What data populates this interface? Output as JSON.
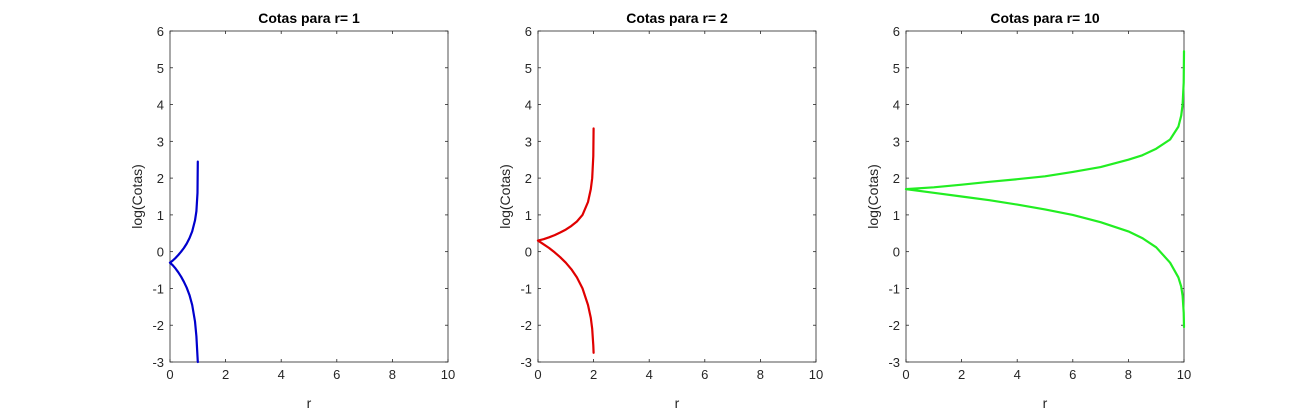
{
  "chart_data": [
    {
      "type": "line",
      "title": "Cotas para r= 1",
      "xlabel": "r",
      "ylabel": "log(Cotas)",
      "xlim": [
        0,
        10
      ],
      "ylim": [
        -3,
        6
      ],
      "xticks": [
        "0",
        "2",
        "4",
        "6",
        "8",
        "10"
      ],
      "yticks": [
        "-3",
        "-2",
        "-1",
        "0",
        "1",
        "2",
        "3",
        "4",
        "5",
        "6"
      ],
      "grid": false,
      "color": "#0000cd",
      "series": [
        {
          "x": [
            1.0,
            0.99,
            0.95,
            0.9,
            0.8,
            0.7,
            0.6,
            0.5,
            0.4,
            0.3,
            0.2,
            0.1,
            0.0
          ],
          "values": [
            2.45,
            1.6,
            1.1,
            0.85,
            0.55,
            0.37,
            0.22,
            0.1,
            0.0,
            -0.09,
            -0.17,
            -0.24,
            -0.3
          ]
        },
        {
          "x": [
            0.0,
            0.1,
            0.2,
            0.3,
            0.4,
            0.5,
            0.6,
            0.7,
            0.8,
            0.9,
            0.95,
            0.99,
            1.0
          ],
          "values": [
            -0.3,
            -0.37,
            -0.46,
            -0.56,
            -0.68,
            -0.82,
            -0.98,
            -1.18,
            -1.45,
            -1.9,
            -2.3,
            -2.85,
            -3.0
          ]
        }
      ]
    },
    {
      "type": "line",
      "title": "Cotas para r= 2",
      "xlabel": "r",
      "ylabel": "log(Cotas)",
      "xlim": [
        0,
        10
      ],
      "ylim": [
        -3,
        6
      ],
      "xticks": [
        "0",
        "2",
        "4",
        "6",
        "8",
        "10"
      ],
      "yticks": [
        "-3",
        "-2",
        "-1",
        "0",
        "1",
        "2",
        "3",
        "4",
        "5",
        "6"
      ],
      "grid": false,
      "color": "#e00000",
      "series": [
        {
          "x": [
            2.0,
            1.99,
            1.95,
            1.9,
            1.8,
            1.6,
            1.4,
            1.2,
            1.0,
            0.8,
            0.6,
            0.4,
            0.2,
            0.0
          ],
          "values": [
            3.35,
            2.6,
            2.0,
            1.7,
            1.35,
            1.0,
            0.82,
            0.7,
            0.6,
            0.52,
            0.45,
            0.39,
            0.34,
            0.3
          ]
        },
        {
          "x": [
            0.0,
            0.2,
            0.4,
            0.6,
            0.8,
            1.0,
            1.2,
            1.4,
            1.6,
            1.8,
            1.9,
            1.95,
            1.99,
            2.0
          ],
          "values": [
            0.3,
            0.2,
            0.1,
            -0.02,
            -0.15,
            -0.3,
            -0.48,
            -0.7,
            -1.0,
            -1.45,
            -1.8,
            -2.1,
            -2.55,
            -2.75
          ]
        }
      ]
    },
    {
      "type": "line",
      "title": "Cotas para r= 10",
      "xlabel": "r",
      "ylabel": "log(Cotas)",
      "xlim": [
        0,
        10
      ],
      "ylim": [
        -3,
        6
      ],
      "xticks": [
        "0",
        "2",
        "4",
        "6",
        "8",
        "10"
      ],
      "yticks": [
        "-3",
        "-2",
        "-1",
        "0",
        "1",
        "2",
        "3",
        "4",
        "5",
        "6"
      ],
      "grid": false,
      "color": "#22ee22",
      "series": [
        {
          "x": [
            10.0,
            9.99,
            9.95,
            9.9,
            9.8,
            9.5,
            9.0,
            8.5,
            8.0,
            7.0,
            6.0,
            5.0,
            4.0,
            3.0,
            2.0,
            1.0,
            0.0
          ],
          "values": [
            5.45,
            4.6,
            4.0,
            3.7,
            3.4,
            3.05,
            2.8,
            2.62,
            2.5,
            2.3,
            2.17,
            2.05,
            1.97,
            1.9,
            1.82,
            1.75,
            1.7
          ]
        },
        {
          "x": [
            0.0,
            1.0,
            2.0,
            3.0,
            4.0,
            5.0,
            6.0,
            7.0,
            8.0,
            8.5,
            9.0,
            9.5,
            9.8,
            9.9,
            9.95,
            9.99,
            10.0
          ],
          "values": [
            1.7,
            1.6,
            1.5,
            1.4,
            1.28,
            1.15,
            1.0,
            0.8,
            0.55,
            0.37,
            0.12,
            -0.3,
            -0.7,
            -0.95,
            -1.2,
            -1.65,
            -2.05
          ]
        }
      ]
    }
  ]
}
